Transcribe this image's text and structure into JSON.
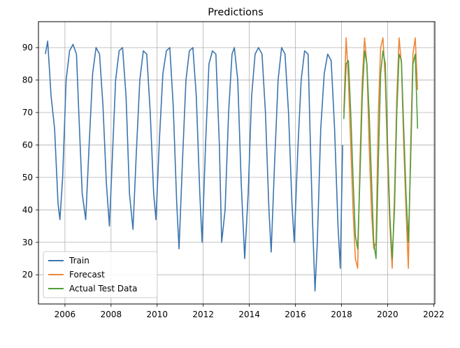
{
  "chart_data": {
    "type": "line",
    "title": "Predictions",
    "xlabel": "",
    "ylabel": "",
    "xlim": [
      2004.85,
      2022.05
    ],
    "ylim": [
      11.0,
      98.0
    ],
    "grid": true,
    "legend_position": "lower-left",
    "x_ticks": [
      2006,
      2008,
      2010,
      2012,
      2014,
      2016,
      2018,
      2020,
      2022
    ],
    "y_ticks": [
      20,
      30,
      40,
      50,
      60,
      70,
      80,
      90
    ],
    "series": [
      {
        "name": "Train",
        "color": "#3b75af",
        "x": [
          2005.15,
          2005.25,
          2005.4,
          2005.55,
          2005.7,
          2005.78,
          2005.9,
          2006.05,
          2006.2,
          2006.35,
          2006.5,
          2006.6,
          2006.75,
          2006.9,
          2007.05,
          2007.2,
          2007.35,
          2007.5,
          2007.65,
          2007.8,
          2007.93,
          2008.05,
          2008.2,
          2008.35,
          2008.5,
          2008.65,
          2008.8,
          2008.95,
          2009.1,
          2009.25,
          2009.4,
          2009.55,
          2009.7,
          2009.85,
          2009.95,
          2010.1,
          2010.25,
          2010.4,
          2010.55,
          2010.7,
          2010.85,
          2010.95,
          2011.1,
          2011.25,
          2011.4,
          2011.55,
          2011.7,
          2011.85,
          2011.95,
          2012.1,
          2012.25,
          2012.4,
          2012.55,
          2012.7,
          2012.8,
          2012.95,
          2013.1,
          2013.25,
          2013.35,
          2013.5,
          2013.65,
          2013.8,
          2013.95,
          2014.1,
          2014.25,
          2014.4,
          2014.55,
          2014.7,
          2014.85,
          2014.95,
          2015.1,
          2015.25,
          2015.4,
          2015.55,
          2015.7,
          2015.85,
          2015.95,
          2016.1,
          2016.25,
          2016.4,
          2016.55,
          2016.65,
          2016.75,
          2016.85,
          2016.95,
          2017.1,
          2017.25,
          2017.4,
          2017.55,
          2017.7,
          2017.85,
          2017.95,
          2018.05
        ],
        "values": [
          88,
          92,
          75,
          65,
          42,
          37,
          50,
          80,
          89,
          91,
          88,
          70,
          45,
          37,
          60,
          82,
          90,
          88,
          72,
          48,
          35,
          55,
          80,
          89,
          90,
          75,
          45,
          34,
          58,
          80,
          89,
          88,
          70,
          45,
          37,
          62,
          82,
          89,
          90,
          72,
          42,
          28,
          55,
          80,
          89,
          90,
          75,
          45,
          30,
          60,
          85,
          89,
          88,
          60,
          30,
          40,
          70,
          88,
          90,
          80,
          48,
          25,
          45,
          75,
          88,
          90,
          88,
          70,
          40,
          27,
          55,
          80,
          90,
          88,
          70,
          42,
          30,
          58,
          80,
          89,
          88,
          60,
          35,
          15,
          30,
          65,
          82,
          88,
          86,
          65,
          35,
          22,
          60
        ]
      },
      {
        "name": "Forecast",
        "color": "#ef8636",
        "x": [
          2018.1,
          2018.2,
          2018.3,
          2018.4,
          2018.5,
          2018.6,
          2018.7,
          2018.8,
          2018.9,
          2019.0,
          2019.1,
          2019.2,
          2019.3,
          2019.4,
          2019.5,
          2019.6,
          2019.7,
          2019.8,
          2019.9,
          2020.0,
          2020.1,
          2020.2,
          2020.3,
          2020.4,
          2020.5,
          2020.6,
          2020.7,
          2020.8,
          2020.9,
          2021.0,
          2021.1,
          2021.2,
          2021.3
        ],
        "values": [
          70,
          93,
          80,
          60,
          40,
          25,
          22,
          55,
          80,
          93,
          85,
          60,
          40,
          28,
          30,
          70,
          90,
          93,
          80,
          55,
          35,
          22,
          45,
          75,
          93,
          85,
          60,
          40,
          22,
          60,
          88,
          93,
          77
        ]
      },
      {
        "name": "Actual Test Data",
        "color": "#519e3e",
        "x": [
          2018.1,
          2018.2,
          2018.3,
          2018.4,
          2018.5,
          2018.6,
          2018.7,
          2018.8,
          2018.9,
          2019.0,
          2019.1,
          2019.2,
          2019.3,
          2019.4,
          2019.5,
          2019.6,
          2019.7,
          2019.8,
          2019.9,
          2020.0,
          2020.1,
          2020.2,
          2020.3,
          2020.4,
          2020.5,
          2020.6,
          2020.7,
          2020.8,
          2020.9,
          2021.0,
          2021.1,
          2021.2,
          2021.3
        ],
        "values": [
          68,
          85,
          86,
          70,
          50,
          32,
          28,
          50,
          75,
          89,
          85,
          70,
          50,
          30,
          25,
          55,
          82,
          89,
          85,
          60,
          38,
          25,
          40,
          70,
          88,
          86,
          65,
          45,
          30,
          55,
          85,
          88,
          65
        ]
      }
    ]
  }
}
